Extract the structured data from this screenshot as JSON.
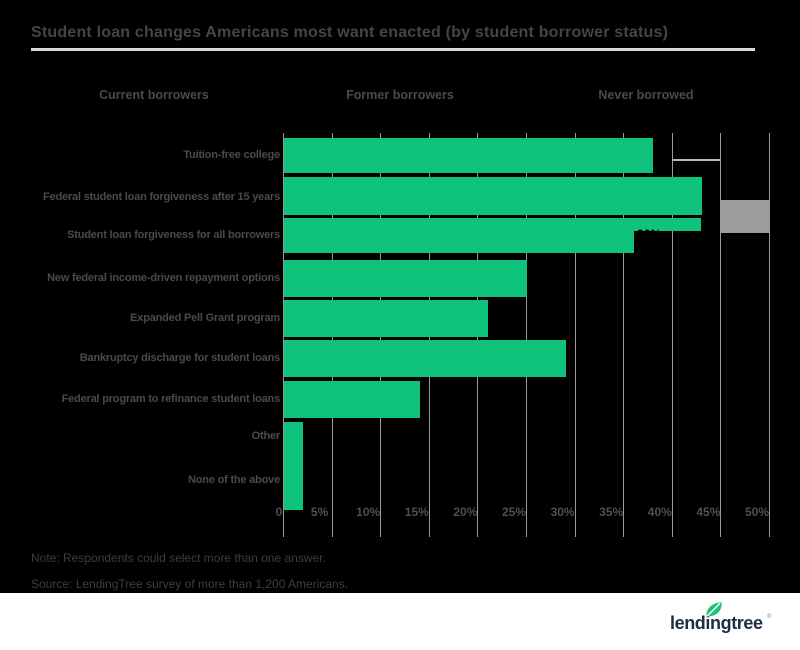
{
  "title": "Student loan changes Americans most want enacted (by student borrower status)",
  "legend": {
    "items": [
      "Current borrowers",
      "Former borrowers",
      "Never borrowed"
    ]
  },
  "chart_data": {
    "type": "bar",
    "orientation": "horizontal",
    "title": "Student loan changes Americans most want enacted (by student borrower status)",
    "categories": [
      "Tuition-free college",
      "Federal student loan forgiveness after 15 years",
      "Student loan forgiveness for all borrowers",
      "New federal income-driven repayment options",
      "Expanded Pell Grant program",
      "Bankruptcy discharge for student loans",
      "Federal program to refinance student loans",
      "Other",
      "None of the above"
    ],
    "series": [
      {
        "name": "Current borrowers",
        "color": "#0fc37c",
        "values": [
          38,
          43,
          36,
          25,
          21,
          29,
          14,
          2,
          2
        ]
      }
    ],
    "xlabel": "",
    "ylabel": "",
    "xlim": [
      0,
      50
    ],
    "x_ticks": [
      "0",
      "5%",
      "10%",
      "15%",
      "20%",
      "25%",
      "30%",
      "35%",
      "40%",
      "45%",
      "50%"
    ],
    "grid": true,
    "legend_position": "top",
    "visible_data_label": "36%",
    "visible_fragments": {
      "gray_bar_range_pct": [
        45,
        50
      ],
      "green_patch_right_pct": 43
    }
  },
  "notes": {
    "note": "Note: Respondents could select more than one answer.",
    "source": "Source: LendingTree survey of more than 1,200 Americans."
  },
  "logo": {
    "text": "lendingtree",
    "registered": "®"
  },
  "colors": {
    "background": "#000000",
    "bar_green": "#0fc37c",
    "gray_bar": "#9c9c9c",
    "gridline": "#9a9a9a",
    "title_text": "#454545",
    "label_text": "#4a4a4a",
    "rule": "#d9d9d9",
    "footer": "#ffffff",
    "logo_navy": "#1a2e47",
    "logo_leaf": "#1fc478"
  }
}
